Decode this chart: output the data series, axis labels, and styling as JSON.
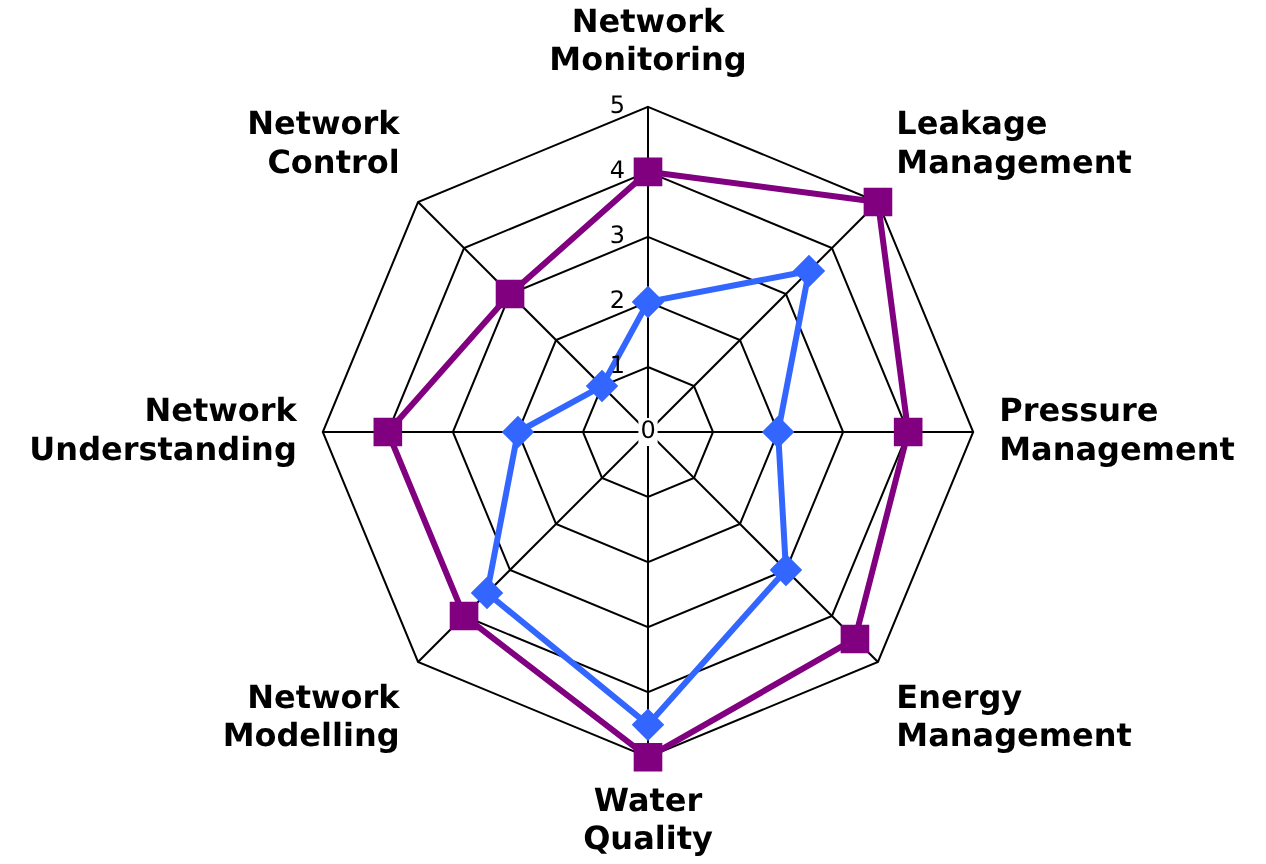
{
  "chart_data": {
    "type": "radar",
    "categories": [
      "Network Monitoring",
      "Leakage Management",
      "Pressure Management",
      "Energy Management",
      "Water Quality",
      "Network Modelling",
      "Network Understanding",
      "Network Control"
    ],
    "series": [
      {
        "color": "#800080",
        "marker": "square",
        "values": [
          4,
          5,
          4,
          4.5,
          5,
          4,
          4,
          3
        ]
      },
      {
        "color": "#3366ff",
        "marker": "diamond",
        "values": [
          2,
          3.5,
          2,
          3,
          4.5,
          3.5,
          2,
          1
        ]
      }
    ],
    "ylim": [
      0,
      5
    ],
    "yticks": [
      0,
      1,
      2,
      3,
      4,
      5
    ],
    "grid": true,
    "legend": false
  }
}
